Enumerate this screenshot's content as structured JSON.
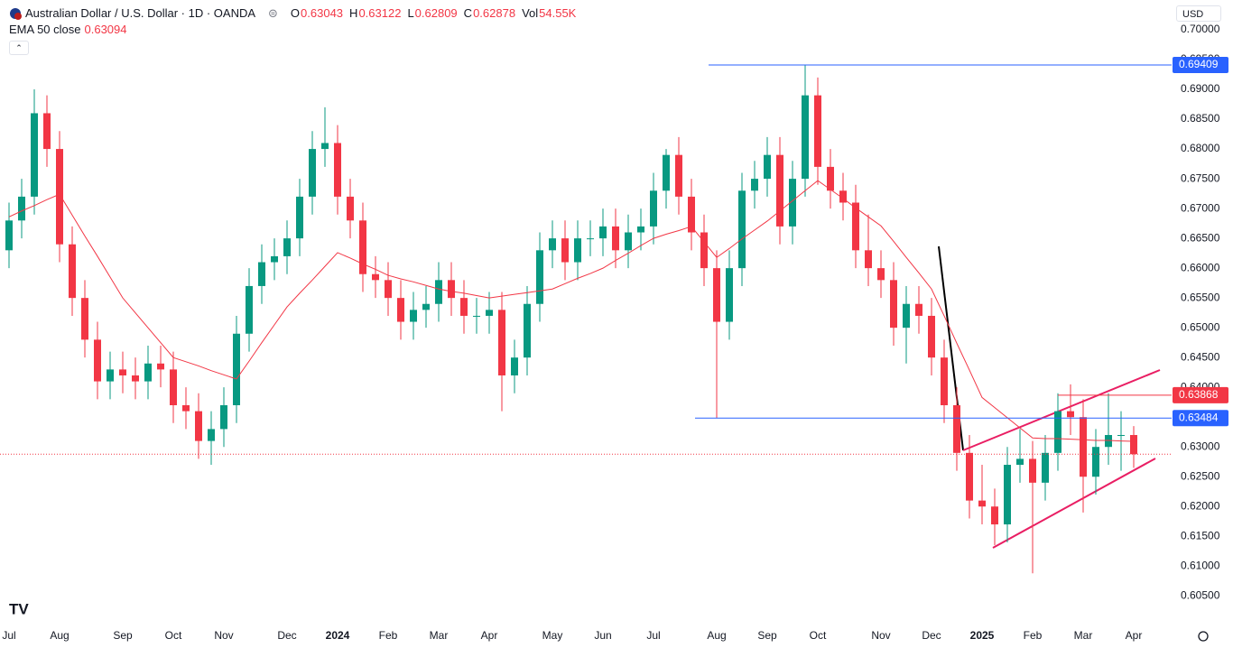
{
  "chart_data": {
    "type": "candlestick",
    "title": "Australian Dollar / U.S. Dollar · 1D · OANDA",
    "ohlc_legend": [
      {
        "label": "O",
        "value": "0.63043"
      },
      {
        "label": "H",
        "value": "0.63122"
      },
      {
        "label": "L",
        "value": "0.62809"
      },
      {
        "label": "C",
        "value": "0.62878"
      },
      {
        "label": "Vol",
        "value": "54.55K"
      }
    ],
    "currency": "USD",
    "up_color": "#089981",
    "down_color": "#f23645",
    "categories": [
      "Jul",
      null,
      null,
      null,
      "Aug",
      null,
      null,
      null,
      null,
      "Sep",
      null,
      null,
      null,
      "Oct",
      null,
      null,
      null,
      "Nov",
      null,
      null,
      null,
      null,
      "Dec",
      null,
      null,
      null,
      "2024",
      null,
      null,
      null,
      "Feb",
      null,
      null,
      null,
      "Mar",
      null,
      null,
      null,
      "Apr",
      null,
      null,
      null,
      null,
      "May",
      null,
      null,
      null,
      "Jun",
      null,
      null,
      null,
      "Jul",
      null,
      null,
      null,
      null,
      "Aug",
      null,
      null,
      null,
      "Sep",
      null,
      null,
      null,
      "Oct",
      null,
      null,
      null,
      null,
      "Nov",
      null,
      null,
      null,
      "Dec",
      null,
      null,
      null,
      "2025",
      null,
      null,
      null,
      "Feb",
      null,
      null,
      null,
      "Mar",
      null,
      null,
      null,
      "Apr"
    ],
    "open": [
      0.663,
      0.668,
      0.672,
      0.686,
      0.68,
      0.664,
      0.655,
      0.648,
      0.641,
      0.643,
      0.642,
      0.641,
      0.644,
      0.643,
      0.637,
      0.636,
      0.631,
      0.633,
      0.637,
      0.649,
      0.657,
      0.661,
      0.662,
      0.665,
      0.672,
      0.68,
      0.681,
      0.672,
      0.668,
      0.659,
      0.658,
      0.655,
      0.651,
      0.653,
      0.654,
      0.658,
      0.655,
      0.652,
      0.652,
      0.653,
      0.642,
      0.645,
      0.654,
      0.663,
      0.665,
      0.661,
      0.665,
      0.665,
      0.667,
      0.663,
      0.666,
      0.667,
      0.673,
      0.679,
      0.672,
      0.666,
      0.66,
      0.651,
      0.66,
      0.673,
      0.675,
      0.679,
      0.667,
      0.675,
      0.689,
      0.677,
      0.673,
      0.671,
      0.663,
      0.66,
      0.658,
      0.65,
      0.654,
      0.652,
      0.645,
      0.637,
      0.629,
      0.621,
      0.62,
      0.617,
      0.627,
      0.628,
      0.624,
      0.629,
      0.636,
      0.635,
      0.625,
      0.63,
      0.632,
      0.632
    ],
    "high": [
      0.671,
      0.675,
      0.69,
      0.689,
      0.683,
      0.667,
      0.658,
      0.651,
      0.646,
      0.646,
      0.645,
      0.647,
      0.647,
      0.646,
      0.64,
      0.639,
      0.636,
      0.64,
      0.652,
      0.66,
      0.664,
      0.665,
      0.668,
      0.675,
      0.683,
      0.687,
      0.684,
      0.675,
      0.671,
      0.662,
      0.661,
      0.658,
      0.656,
      0.657,
      0.661,
      0.661,
      0.658,
      0.655,
      0.656,
      0.656,
      0.648,
      0.657,
      0.666,
      0.668,
      0.668,
      0.668,
      0.668,
      0.67,
      0.67,
      0.669,
      0.67,
      0.676,
      0.68,
      0.682,
      0.675,
      0.669,
      0.663,
      0.663,
      0.676,
      0.678,
      0.682,
      0.682,
      0.678,
      0.6941,
      0.692,
      0.68,
      0.676,
      0.674,
      0.669,
      0.663,
      0.661,
      0.657,
      0.657,
      0.655,
      0.648,
      0.64,
      0.632,
      0.627,
      0.623,
      0.63,
      0.633,
      0.631,
      0.632,
      0.639,
      0.6405,
      0.638,
      0.633,
      0.639,
      0.636,
      0.6335
    ],
    "low": [
      0.66,
      0.665,
      0.669,
      0.677,
      0.661,
      0.652,
      0.645,
      0.638,
      0.638,
      0.639,
      0.638,
      0.638,
      0.64,
      0.634,
      0.633,
      0.628,
      0.627,
      0.63,
      0.634,
      0.646,
      0.654,
      0.658,
      0.659,
      0.662,
      0.669,
      0.677,
      0.669,
      0.665,
      0.656,
      0.655,
      0.652,
      0.648,
      0.648,
      0.65,
      0.651,
      0.652,
      0.649,
      0.649,
      0.649,
      0.636,
      0.639,
      0.642,
      0.651,
      0.66,
      0.658,
      0.658,
      0.662,
      0.662,
      0.66,
      0.66,
      0.663,
      0.664,
      0.67,
      0.669,
      0.663,
      0.657,
      0.6348,
      0.648,
      0.657,
      0.67,
      0.672,
      0.664,
      0.664,
      0.672,
      0.674,
      0.67,
      0.668,
      0.66,
      0.657,
      0.655,
      0.647,
      0.644,
      0.649,
      0.642,
      0.634,
      0.626,
      0.618,
      0.617,
      0.6135,
      0.614,
      0.624,
      0.6088,
      0.621,
      0.626,
      0.632,
      0.619,
      0.622,
      0.627,
      0.626,
      0.6265
    ],
    "close": [
      0.668,
      0.672,
      0.686,
      0.68,
      0.664,
      0.655,
      0.648,
      0.641,
      0.643,
      0.642,
      0.641,
      0.644,
      0.643,
      0.637,
      0.636,
      0.631,
      0.633,
      0.637,
      0.649,
      0.657,
      0.661,
      0.662,
      0.665,
      0.672,
      0.68,
      0.681,
      0.672,
      0.668,
      0.659,
      0.658,
      0.655,
      0.651,
      0.653,
      0.654,
      0.658,
      0.655,
      0.652,
      0.652,
      0.653,
      0.642,
      0.645,
      0.654,
      0.663,
      0.665,
      0.661,
      0.665,
      0.665,
      0.667,
      0.663,
      0.666,
      0.667,
      0.673,
      0.679,
      0.672,
      0.666,
      0.66,
      0.651,
      0.66,
      0.673,
      0.675,
      0.679,
      0.667,
      0.675,
      0.689,
      0.677,
      0.673,
      0.671,
      0.663,
      0.66,
      0.658,
      0.65,
      0.654,
      0.652,
      0.645,
      0.637,
      0.629,
      0.621,
      0.62,
      0.617,
      0.627,
      0.628,
      0.624,
      0.629,
      0.636,
      0.635,
      0.625,
      0.63,
      0.632,
      0.632,
      0.62878
    ],
    "series": [
      {
        "name": "EMA 50 close",
        "color": "#f23645",
        "value_label": "0.63094",
        "values": [
          0.6686,
          0.6696,
          0.6705,
          0.6715,
          0.6724,
          0.6689,
          0.6654,
          0.662,
          0.6585,
          0.655,
          0.6525,
          0.65,
          0.6475,
          0.645,
          0.6443,
          0.6436,
          0.6428,
          0.6421,
          0.6414,
          0.6444,
          0.6475,
          0.6505,
          0.6535,
          0.6558,
          0.658,
          0.6603,
          0.6626,
          0.6617,
          0.6607,
          0.6598,
          0.6588,
          0.6582,
          0.6577,
          0.6571,
          0.6565,
          0.6561,
          0.6558,
          0.6554,
          0.655,
          0.6553,
          0.6556,
          0.6559,
          0.6562,
          0.6565,
          0.6574,
          0.6583,
          0.6591,
          0.66,
          0.6613,
          0.6625,
          0.6638,
          0.665,
          0.6657,
          0.6663,
          0.667,
          0.6644,
          0.6618,
          0.6633,
          0.6649,
          0.6664,
          0.6679,
          0.6696,
          0.6713,
          0.673,
          0.6747,
          0.6732,
          0.6717,
          0.6701,
          0.6686,
          0.6671,
          0.6645,
          0.6618,
          0.6592,
          0.6565,
          0.652,
          0.6474,
          0.6429,
          0.6383,
          0.6366,
          0.6349,
          0.6332,
          0.6315,
          0.6314,
          0.6314,
          0.6313,
          0.6312,
          0.6311,
          0.6311,
          0.631,
          0.63094
        ]
      }
    ],
    "levels": [
      {
        "value": 0.69409,
        "color": "#2962ff"
      },
      {
        "value": 0.63868,
        "color": "#f23645"
      },
      {
        "value": 0.63484,
        "color": "#2962ff"
      }
    ],
    "ylim": [
      0.6005,
      0.705
    ],
    "yticks": [
      {
        "value": 0.605,
        "label": "0.60500"
      },
      {
        "value": 0.61,
        "label": "0.61000"
      },
      {
        "value": 0.615,
        "label": "0.61500"
      },
      {
        "value": 0.62,
        "label": "0.62000"
      },
      {
        "value": 0.625,
        "label": "0.62500"
      },
      {
        "value": 0.63,
        "label": "0.63000"
      },
      {
        "value": 0.635,
        "label": "0.63500"
      },
      {
        "value": 0.64,
        "label": "0.64000"
      },
      {
        "value": 0.645,
        "label": "0.64500"
      },
      {
        "value": 0.65,
        "label": "0.65000"
      },
      {
        "value": 0.655,
        "label": "0.65500"
      },
      {
        "value": 0.66,
        "label": "0.66000"
      },
      {
        "value": 0.665,
        "label": "0.66500"
      },
      {
        "value": 0.67,
        "label": "0.67000"
      },
      {
        "value": 0.675,
        "label": "0.67500"
      },
      {
        "value": 0.68,
        "label": "0.68000"
      },
      {
        "value": 0.685,
        "label": "0.68500"
      },
      {
        "value": 0.69,
        "label": "0.69000"
      },
      {
        "value": 0.695,
        "label": "0.69500"
      },
      {
        "value": 0.7,
        "label": "0.70000"
      }
    ],
    "grid": false
  }
}
